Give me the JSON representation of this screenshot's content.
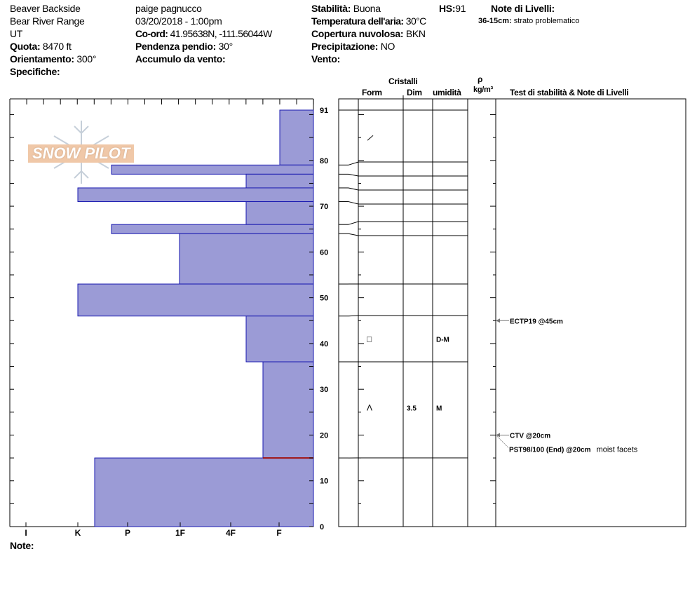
{
  "site": {
    "name": "Beaver Backside",
    "range": "Bear River Range",
    "state": "UT",
    "elevation_label": "Quota:",
    "elevation": "8470 ft",
    "aspect_label": "Orientamento:",
    "aspect": "300°",
    "specifics_label": "Specifiche:"
  },
  "observer": {
    "name": "paige pagnucco",
    "datetime": "03/20/2018 - 1:00pm",
    "coord_label": "Co-ord:",
    "coord": "41.95638N, -111.56044W",
    "slope_label": "Pendenza pendio:",
    "slope": "30°",
    "wind_loading_label": "Accumulo da vento:"
  },
  "conditions": {
    "stability_label": "Stabilità:",
    "stability": "Buona",
    "hs_label": "HS:",
    "hs": "91",
    "air_temp_label": "Temperatura dell'aria:",
    "air_temp": "30°C",
    "sky_label": "Copertura nuvolosa:",
    "sky": "BKN",
    "precip_label": "Precipitazione:",
    "precip": "NO",
    "wind_label": "Vento:"
  },
  "layer_notes": {
    "title": "Note di Livelli:",
    "range": "36-15cm:",
    "text": "strato problematico"
  },
  "table_headers": {
    "crystals": "Cristalli",
    "form": "Form",
    "size": "Dim",
    "moisture": "umidità",
    "rho": "ρ",
    "density": "kg/m³",
    "tests": "Test di stabilità & Note di Livelli"
  },
  "logo": "SNOW PILOT",
  "notes_label": "Note:",
  "hardness_labels": [
    "I",
    "K",
    "P",
    "1F",
    "4F",
    "F"
  ],
  "depth_ticks": [
    "0",
    "10",
    "20",
    "30",
    "40",
    "50",
    "60",
    "70",
    "80",
    "91"
  ],
  "colors": {
    "layer_fill": "#9b9bd6",
    "layer_stroke": "#1a1ab0",
    "critical": "#a01010"
  },
  "layers": [
    {
      "top": 91,
      "bottom": 79,
      "hardness": "F"
    },
    {
      "top": 79,
      "bottom": 77,
      "hardness": "P-"
    },
    {
      "top": 77,
      "bottom": 74,
      "hardness": "4F+"
    },
    {
      "top": 74,
      "bottom": 71,
      "hardness": "K"
    },
    {
      "top": 71,
      "bottom": 66,
      "hardness": "4F+"
    },
    {
      "top": 66,
      "bottom": 64,
      "hardness": "P-"
    },
    {
      "top": 64,
      "bottom": 53,
      "hardness": "1F"
    },
    {
      "top": 53,
      "bottom": 46,
      "hardness": "K"
    },
    {
      "top": 46,
      "bottom": 36,
      "hardness": "4F+",
      "form": "□",
      "moisture": "D-M"
    },
    {
      "top": 36,
      "bottom": 15,
      "hardness": "F+",
      "form": "Λ",
      "size": "3.5",
      "moisture": "M"
    },
    {
      "top": 15,
      "bottom": 0,
      "hardness": "K-"
    }
  ],
  "crystal_marks": [
    {
      "depth": 85,
      "form": "/"
    }
  ],
  "tests": [
    {
      "depth": 45,
      "label": "ECTP19 @45cm"
    },
    {
      "depth": 20,
      "label": "CTV @20cm"
    },
    {
      "depth": 20,
      "label": "PST98/100 (End) @20cm",
      "note": "moist facets"
    }
  ],
  "critical_depth": 15
}
